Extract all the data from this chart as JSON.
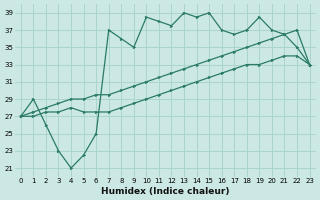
{
  "xlabel": "Humidex (Indice chaleur)",
  "bg_color": "#cce8e4",
  "grid_color": "#aad4cc",
  "line_color": "#2a7a6a",
  "xlim": [
    -0.5,
    23.5
  ],
  "ylim": [
    20,
    40
  ],
  "xticks": [
    0,
    1,
    2,
    3,
    4,
    5,
    6,
    7,
    8,
    9,
    10,
    11,
    12,
    13,
    14,
    15,
    16,
    17,
    18,
    19,
    20,
    21,
    22,
    23
  ],
  "yticks": [
    21,
    23,
    25,
    27,
    29,
    31,
    33,
    35,
    37,
    39
  ],
  "series1_x": [
    0,
    1,
    2,
    3,
    4,
    5,
    6,
    7,
    8,
    9,
    10,
    11,
    12,
    13,
    14,
    15,
    16,
    17,
    18,
    19,
    20,
    21,
    22,
    23
  ],
  "series1_y": [
    27,
    29,
    26,
    23,
    21,
    22.5,
    25,
    37,
    36,
    35,
    38.5,
    38,
    37.5,
    39,
    38.5,
    39,
    37,
    36.5,
    37,
    38.5,
    37,
    36.5,
    35,
    33
  ],
  "series2_x": [
    0,
    1,
    2,
    3,
    4,
    5,
    6,
    7,
    8,
    9,
    10,
    11,
    12,
    13,
    14,
    15,
    16,
    17,
    18,
    19,
    20,
    21,
    22,
    23
  ],
  "series2_y": [
    27,
    27.5,
    28,
    28.5,
    29,
    29,
    29.5,
    29.5,
    30,
    30.5,
    31,
    31.5,
    32,
    32.5,
    33,
    33.5,
    34,
    34.5,
    35,
    35.5,
    36,
    36.5,
    37,
    33
  ],
  "series3_x": [
    0,
    1,
    2,
    3,
    4,
    5,
    6,
    7,
    8,
    9,
    10,
    11,
    12,
    13,
    14,
    15,
    16,
    17,
    18,
    19,
    20,
    21,
    22,
    23
  ],
  "series3_y": [
    27,
    27,
    27.5,
    27.5,
    28,
    27.5,
    27.5,
    27.5,
    28,
    28.5,
    29,
    29.5,
    30,
    30.5,
    31,
    31.5,
    32,
    32.5,
    33,
    33,
    33.5,
    34,
    34,
    33
  ]
}
